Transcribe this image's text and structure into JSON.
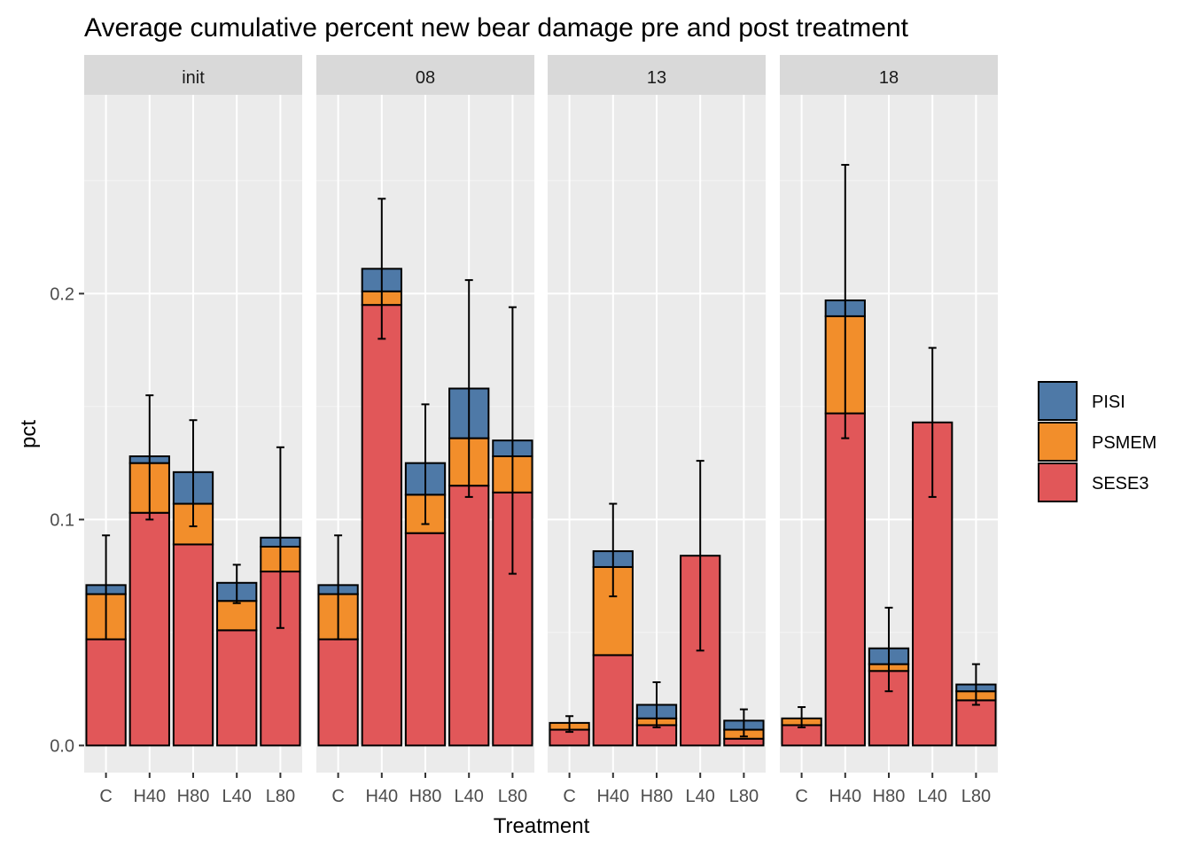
{
  "chart_data": {
    "type": "bar",
    "stacked": true,
    "title": "Average cumulative percent new bear damage pre and post treatment",
    "xlabel": "Treatment",
    "ylabel": "pct",
    "ylim": [
      -0.012,
      0.288
    ],
    "yticks": [
      0.0,
      0.1,
      0.2
    ],
    "ytick_labels": [
      "0.0",
      "0.1",
      "0.2"
    ],
    "categories": [
      "C",
      "H40",
      "H80",
      "L40",
      "L80"
    ],
    "legend": {
      "position": "right",
      "entries": [
        {
          "name": "PISI",
          "color": "#4E79A7"
        },
        {
          "name": "PSMEM",
          "color": "#F28E2B"
        },
        {
          "name": "SESE3",
          "color": "#E15759"
        }
      ]
    },
    "grid": true,
    "panels": [
      {
        "label": "init",
        "series": [
          {
            "name": "SESE3",
            "values": [
              0.047,
              0.103,
              0.089,
              0.051,
              0.077
            ]
          },
          {
            "name": "PSMEM",
            "values": [
              0.02,
              0.022,
              0.018,
              0.013,
              0.011
            ]
          },
          {
            "name": "PISI",
            "values": [
              0.004,
              0.003,
              0.014,
              0.008,
              0.004
            ]
          }
        ],
        "error_bars": [
          [
            0.047,
            0.093
          ],
          [
            0.1,
            0.155
          ],
          [
            0.097,
            0.144
          ],
          [
            0.063,
            0.08
          ],
          [
            0.052,
            0.132
          ]
        ]
      },
      {
        "label": "08",
        "series": [
          {
            "name": "SESE3",
            "values": [
              0.047,
              0.195,
              0.094,
              0.115,
              0.112
            ]
          },
          {
            "name": "PSMEM",
            "values": [
              0.02,
              0.006,
              0.017,
              0.021,
              0.016
            ]
          },
          {
            "name": "PISI",
            "values": [
              0.004,
              0.01,
              0.014,
              0.022,
              0.007
            ]
          }
        ],
        "error_bars": [
          [
            0.047,
            0.093
          ],
          [
            0.18,
            0.242
          ],
          [
            0.098,
            0.151
          ],
          [
            0.11,
            0.206
          ],
          [
            0.076,
            0.194
          ]
        ]
      },
      {
        "label": "13",
        "series": [
          {
            "name": "SESE3",
            "values": [
              0.007,
              0.04,
              0.009,
              0.084,
              0.003
            ]
          },
          {
            "name": "PSMEM",
            "values": [
              0.003,
              0.039,
              0.003,
              0.0,
              0.004
            ]
          },
          {
            "name": "PISI",
            "values": [
              0.0,
              0.007,
              0.006,
              0.0,
              0.004
            ]
          }
        ],
        "error_bars": [
          [
            0.006,
            0.013
          ],
          [
            0.066,
            0.107
          ],
          [
            0.008,
            0.028
          ],
          [
            0.042,
            0.126
          ],
          [
            0.004,
            0.016
          ]
        ]
      },
      {
        "label": "18",
        "series": [
          {
            "name": "SESE3",
            "values": [
              0.009,
              0.147,
              0.033,
              0.143,
              0.02
            ]
          },
          {
            "name": "PSMEM",
            "values": [
              0.003,
              0.043,
              0.003,
              0.0,
              0.004
            ]
          },
          {
            "name": "PISI",
            "values": [
              0.0,
              0.007,
              0.007,
              0.0,
              0.003
            ]
          }
        ],
        "error_bars": [
          [
            0.008,
            0.017
          ],
          [
            0.136,
            0.257
          ],
          [
            0.024,
            0.061
          ],
          [
            0.11,
            0.176
          ],
          [
            0.018,
            0.036
          ]
        ]
      }
    ]
  }
}
